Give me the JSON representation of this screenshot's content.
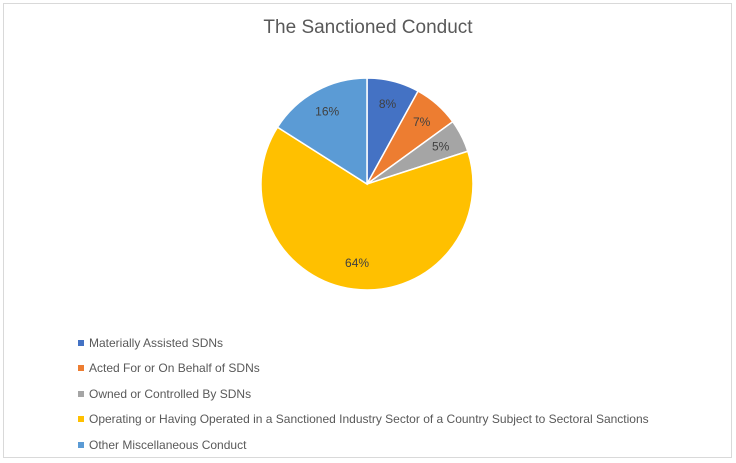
{
  "chart_data": {
    "type": "pie",
    "title": "The Sanctioned Conduct",
    "categories": [
      "Materially Assisted SDNs",
      "Acted For or On Behalf of SDNs",
      "Owned or Controlled By SDNs",
      "Operating or Having Operated in a Sanctioned Industry Sector of a Country Subject to Sectoral Sanctions",
      "Other Miscellaneous Conduct"
    ],
    "values": [
      8,
      7,
      5,
      64,
      16
    ],
    "labels": [
      "8%",
      "7%",
      "5%",
      "64%",
      "16%"
    ],
    "colors": [
      "#4472c4",
      "#ed7d31",
      "#a5a5a5",
      "#ffc000",
      "#5b9bd5"
    ],
    "legend_position": "bottom-left",
    "start_angle": "12 o'clock, clockwise"
  },
  "title": "The Sanctioned Conduct",
  "legend": [
    {
      "label": "Materially Assisted SDNs",
      "color": "#4472c4"
    },
    {
      "label": "Acted For or On Behalf of SDNs",
      "color": "#ed7d31"
    },
    {
      "label": "Owned or Controlled By SDNs",
      "color": "#a5a5a5"
    },
    {
      "label": "Operating or Having Operated in a Sanctioned Industry Sector of a Country Subject to Sectoral Sanctions",
      "color": "#ffc000"
    },
    {
      "label": "Other Miscellaneous Conduct",
      "color": "#5b9bd5"
    }
  ]
}
